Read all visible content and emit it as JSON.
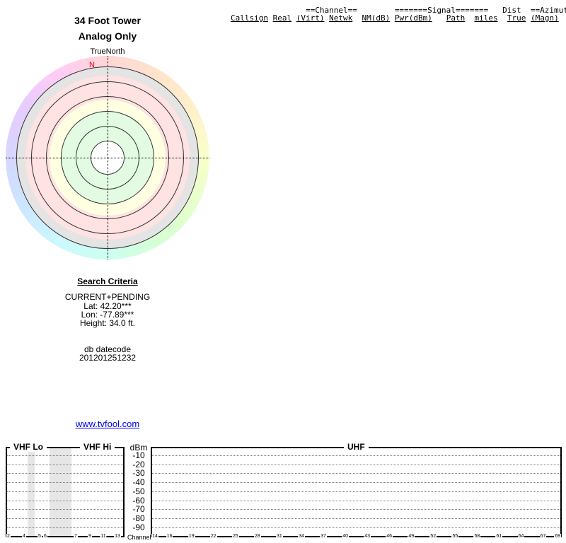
{
  "title": {
    "line1": "34 Foot Tower",
    "line2": "Analog Only"
  },
  "table_header": {
    "group_channel": "==Channel==",
    "group_signal": "=======Signal=======",
    "group_dist": "Dist",
    "group_azimuth": "==Azimuth==",
    "columns": [
      "Callsign",
      "Real",
      "(Virt)",
      "Netwk",
      "NM(dB)",
      "Pwr(dBm)",
      "Path",
      "miles",
      "True",
      "(Magn)"
    ]
  },
  "polar": {
    "top_label": "TrueNorth",
    "north_marker": "N",
    "north_color": "#ff0000"
  },
  "search": {
    "heading": "Search Criteria",
    "mode": "CURRENT+PENDING",
    "lat": "Lat: 42.20***",
    "lon": "Lon: -77.89***",
    "height": "Height: 34.0 ft.",
    "db_label": "db datecode",
    "db_value": "201201251232"
  },
  "link": "www.tvfool.com",
  "spectrum": {
    "vhf_lo_label": "VHF Lo",
    "vhf_hi_label": "VHF Hi",
    "uhf_label": "UHF",
    "y_unit": "dBm",
    "y_ticks": [
      "-10",
      "-20",
      "-30",
      "-40",
      "-50",
      "-60",
      "-70",
      "-80",
      "-90"
    ],
    "x_label": "Channel",
    "vhf_channels": [
      "2",
      "4",
      "5",
      "6",
      "7",
      "9",
      "11",
      "13"
    ],
    "uhf_channels": [
      "14",
      "16",
      "19",
      "22",
      "25",
      "28",
      "31",
      "34",
      "37",
      "40",
      "43",
      "46",
      "49",
      "52",
      "55",
      "58",
      "61",
      "64",
      "67",
      "69"
    ]
  }
}
